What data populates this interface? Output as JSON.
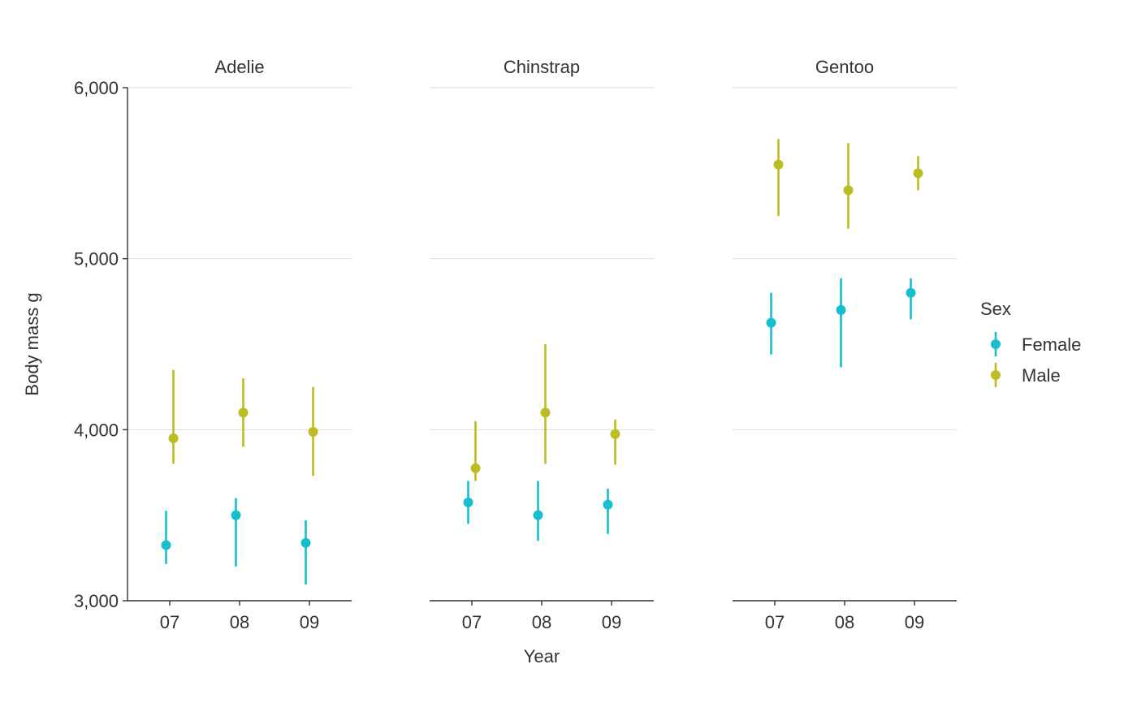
{
  "chart_data": {
    "type": "scatter",
    "facet_by": "species",
    "facets": [
      "Adelie",
      "Chinstrap",
      "Gentoo"
    ],
    "x": [
      "07",
      "08",
      "09"
    ],
    "xlabel": "Year",
    "ylabel": "Body mass g",
    "ylim": [
      3000,
      6000
    ],
    "yticks": [
      3000,
      4000,
      5000,
      6000
    ],
    "ytick_labels": [
      "3,000",
      "4,000",
      "5,000",
      "6,000"
    ],
    "grid": "horizontal",
    "legend": {
      "title": "Sex",
      "position": "right"
    },
    "error_bars": "vertical ranges",
    "series": [
      {
        "name": "Female",
        "color": "#17becf",
        "panels": [
          {
            "facet": "Adelie",
            "points": [
              {
                "x": "07",
                "y": 3325,
                "low": 3215,
                "high": 3525
              },
              {
                "x": "08",
                "y": 3500,
                "low": 3200,
                "high": 3600
              },
              {
                "x": "09",
                "y": 3338,
                "low": 3095,
                "high": 3470
              }
            ]
          },
          {
            "facet": "Chinstrap",
            "points": [
              {
                "x": "07",
                "y": 3575,
                "low": 3450,
                "high": 3700
              },
              {
                "x": "08",
                "y": 3500,
                "low": 3350,
                "high": 3700
              },
              {
                "x": "09",
                "y": 3562,
                "low": 3390,
                "high": 3655
              }
            ]
          },
          {
            "facet": "Gentoo",
            "points": [
              {
                "x": "07",
                "y": 4625,
                "low": 4440,
                "high": 4800
              },
              {
                "x": "08",
                "y": 4700,
                "low": 4365,
                "high": 4885
              },
              {
                "x": "09",
                "y": 4800,
                "low": 4645,
                "high": 4885
              }
            ]
          }
        ]
      },
      {
        "name": "Male",
        "color": "#bcbd22",
        "panels": [
          {
            "facet": "Adelie",
            "points": [
              {
                "x": "07",
                "y": 3950,
                "low": 3800,
                "high": 4350
              },
              {
                "x": "08",
                "y": 4100,
                "low": 3900,
                "high": 4300
              },
              {
                "x": "09",
                "y": 3988,
                "low": 3730,
                "high": 4250
              }
            ]
          },
          {
            "facet": "Chinstrap",
            "points": [
              {
                "x": "07",
                "y": 3775,
                "low": 3700,
                "high": 4050
              },
              {
                "x": "08",
                "y": 4100,
                "low": 3800,
                "high": 4500
              },
              {
                "x": "09",
                "y": 3975,
                "low": 3795,
                "high": 4060
              }
            ]
          },
          {
            "facet": "Gentoo",
            "points": [
              {
                "x": "07",
                "y": 5550,
                "low": 5250,
                "high": 5700
              },
              {
                "x": "08",
                "y": 5400,
                "low": 5175,
                "high": 5675
              },
              {
                "x": "09",
                "y": 5500,
                "low": 5400,
                "high": 5600
              }
            ]
          }
        ]
      }
    ]
  }
}
